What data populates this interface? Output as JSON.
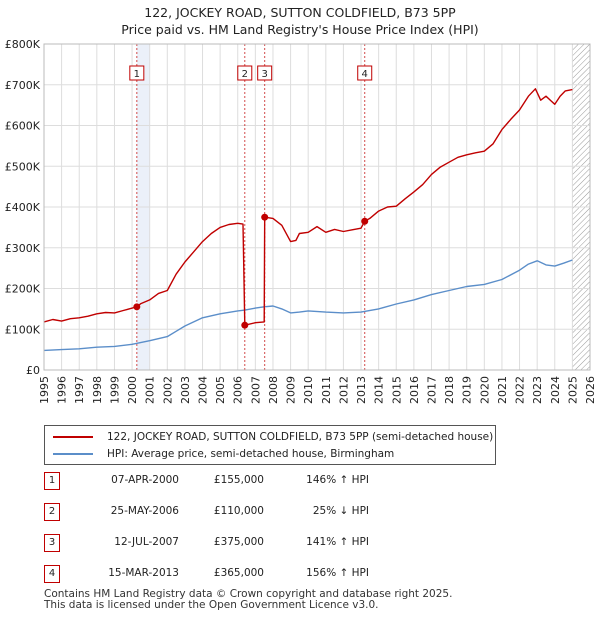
{
  "title_line1": "122, JOCKEY ROAD, SUTTON COLDFIELD, B73 5PP",
  "title_line2": "Price paid vs. HM Land Registry's House Price Index (HPI)",
  "legend": {
    "property": "122, JOCKEY ROAD, SUTTON COLDFIELD, B73 5PP (semi-detached house)",
    "hpi": "HPI: Average price, semi-detached house, Birmingham"
  },
  "colors": {
    "property": "#c00000",
    "hpi": "#5b8ec9",
    "marker": "#c00000",
    "band": "#dde6f5"
  },
  "sales": [
    {
      "num": "1",
      "date": "07-APR-2000",
      "price": "£155,000",
      "hpi_change": "146% ↑ HPI"
    },
    {
      "num": "2",
      "date": "25-MAY-2006",
      "price": "£110,000",
      "hpi_change": "25% ↓ HPI"
    },
    {
      "num": "3",
      "date": "12-JUL-2007",
      "price": "£375,000",
      "hpi_change": "141% ↑ HPI"
    },
    {
      "num": "4",
      "date": "15-MAR-2013",
      "price": "£365,000",
      "hpi_change": "156% ↑ HPI"
    }
  ],
  "footer_line1": "Contains HM Land Registry data © Crown copyright and database right 2025.",
  "footer_line2": "This data is licensed under the Open Government Licence v3.0.",
  "chart_data": {
    "type": "line",
    "title": "122, JOCKEY ROAD, SUTTON COLDFIELD, B73 5PP — Price paid vs. HM Land Registry's House Price Index (HPI)",
    "xlabel": "",
    "ylabel": "",
    "xlim": [
      1995,
      2026
    ],
    "ylim": [
      0,
      800000
    ],
    "grid": true,
    "legend_position": "below-chart",
    "y_ticks": [
      {
        "value": 0,
        "label": "£0"
      },
      {
        "value": 100000,
        "label": "£100K"
      },
      {
        "value": 200000,
        "label": "£200K"
      },
      {
        "value": 300000,
        "label": "£300K"
      },
      {
        "value": 400000,
        "label": "£400K"
      },
      {
        "value": 500000,
        "label": "£500K"
      },
      {
        "value": 600000,
        "label": "£600K"
      },
      {
        "value": 700000,
        "label": "£700K"
      },
      {
        "value": 800000,
        "label": "£800K"
      }
    ],
    "x_ticks": [
      "1995",
      "1996",
      "1997",
      "1998",
      "1999",
      "2000",
      "2001",
      "2002",
      "2003",
      "2004",
      "2005",
      "2006",
      "2007",
      "2008",
      "2009",
      "2010",
      "2011",
      "2012",
      "2013",
      "2014",
      "2015",
      "2016",
      "2017",
      "2018",
      "2019",
      "2020",
      "2021",
      "2022",
      "2023",
      "2024",
      "2025",
      "2026"
    ],
    "shaded_bands": [
      {
        "from": 2000.27,
        "to": 2001.0
      }
    ],
    "hatched_region_from": 2025.0,
    "sale_markers": [
      {
        "label": "1",
        "x": 2000.27,
        "y": 155000
      },
      {
        "label": "2",
        "x": 2006.4,
        "y": 110000
      },
      {
        "label": "3",
        "x": 2007.53,
        "y": 375000
      },
      {
        "label": "4",
        "x": 2013.21,
        "y": 365000
      }
    ],
    "series": [
      {
        "name": "122, JOCKEY ROAD, SUTTON COLDFIELD, B73 5PP (semi-detached house)",
        "x": [
          1995,
          1995.5,
          1996,
          1996.5,
          1997,
          1997.5,
          1998,
          1998.5,
          1999,
          1999.5,
          2000.27,
          2000.5,
          2001,
          2001.5,
          2002,
          2002.5,
          2003,
          2003.5,
          2004,
          2004.5,
          2005,
          2005.5,
          2006,
          2006.3,
          2006.4,
          2007,
          2007.5,
          2007.53,
          2008,
          2008.5,
          2009,
          2009.3,
          2009.5,
          2010,
          2010.5,
          2011,
          2011.5,
          2012,
          2012.5,
          2013,
          2013.21,
          2013.5,
          2014,
          2014.5,
          2015,
          2015.5,
          2016,
          2016.5,
          2017,
          2017.5,
          2018,
          2018.5,
          2019,
          2019.5,
          2020,
          2020.5,
          2021,
          2021.5,
          2022,
          2022.5,
          2022.9,
          2023.2,
          2023.5,
          2023.8,
          2024,
          2024.3,
          2024.6,
          2025
        ],
        "values": [
          118000,
          124000,
          120000,
          126000,
          128000,
          132000,
          138000,
          141000,
          140000,
          146000,
          155000,
          163000,
          172000,
          188000,
          195000,
          235000,
          265000,
          290000,
          315000,
          335000,
          350000,
          357000,
          360000,
          358000,
          110000,
          116000,
          118000,
          375000,
          372000,
          355000,
          315000,
          318000,
          335000,
          338000,
          352000,
          338000,
          345000,
          340000,
          344000,
          348000,
          365000,
          372000,
          390000,
          400000,
          402000,
          420000,
          437000,
          455000,
          480000,
          498000,
          510000,
          522000,
          528000,
          533000,
          537000,
          555000,
          590000,
          615000,
          638000,
          672000,
          690000,
          662000,
          672000,
          660000,
          652000,
          672000,
          685000,
          688000
        ]
      },
      {
        "name": "HPI: Average price, semi-detached house, Birmingham",
        "x": [
          1995,
          1996,
          1997,
          1998,
          1999,
          2000,
          2001,
          2002,
          2002.5,
          2003,
          2004,
          2005,
          2006,
          2006.4,
          2007,
          2007.5,
          2008,
          2008.5,
          2009,
          2009.5,
          2010,
          2011,
          2012,
          2013,
          2014,
          2015,
          2016,
          2017,
          2018,
          2019,
          2020,
          2021,
          2022,
          2022.5,
          2023,
          2023.5,
          2024,
          2024.5,
          2025
        ],
        "values": [
          48000,
          50000,
          52000,
          56000,
          58000,
          63000,
          72000,
          82000,
          95000,
          108000,
          128000,
          138000,
          145000,
          147000,
          152000,
          155000,
          157000,
          150000,
          140000,
          142000,
          145000,
          142000,
          140000,
          142000,
          150000,
          162000,
          172000,
          185000,
          195000,
          205000,
          210000,
          222000,
          245000,
          260000,
          268000,
          258000,
          255000,
          262000,
          270000
        ]
      }
    ]
  }
}
